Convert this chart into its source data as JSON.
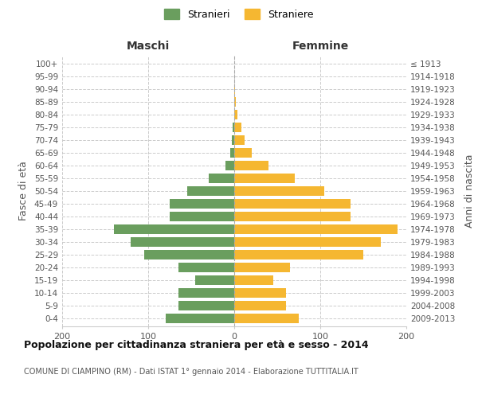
{
  "age_groups": [
    "0-4",
    "5-9",
    "10-14",
    "15-19",
    "20-24",
    "25-29",
    "30-34",
    "35-39",
    "40-44",
    "45-49",
    "50-54",
    "55-59",
    "60-64",
    "65-69",
    "70-74",
    "75-79",
    "80-84",
    "85-89",
    "90-94",
    "95-99",
    "100+"
  ],
  "birth_years": [
    "2009-2013",
    "2004-2008",
    "1999-2003",
    "1994-1998",
    "1989-1993",
    "1984-1988",
    "1979-1983",
    "1974-1978",
    "1969-1973",
    "1964-1968",
    "1959-1963",
    "1954-1958",
    "1949-1953",
    "1944-1948",
    "1939-1943",
    "1934-1938",
    "1929-1933",
    "1924-1928",
    "1919-1923",
    "1914-1918",
    "≤ 1913"
  ],
  "maschi": [
    80,
    65,
    65,
    45,
    65,
    105,
    120,
    140,
    75,
    75,
    55,
    30,
    10,
    5,
    3,
    2,
    0,
    0,
    0,
    0,
    0
  ],
  "femmine": [
    75,
    60,
    60,
    45,
    65,
    150,
    170,
    190,
    135,
    135,
    105,
    70,
    40,
    20,
    12,
    8,
    4,
    2,
    1,
    0,
    0
  ],
  "maschi_color": "#6a9e5e",
  "femmine_color": "#f5b731",
  "background_color": "#ffffff",
  "grid_color": "#cccccc",
  "title": "Popolazione per cittadinanza straniera per età e sesso - 2014",
  "subtitle": "COMUNE DI CIAMPINO (RM) - Dati ISTAT 1° gennaio 2014 - Elaborazione TUTTITALIA.IT",
  "ylabel_left": "Fasce di età",
  "ylabel_right": "Anni di nascita",
  "xlabel_left": "Maschi",
  "xlabel_right": "Femmine",
  "legend_stranieri": "Stranieri",
  "legend_straniere": "Straniere",
  "xlim": 200,
  "dpi": 100,
  "figsize": [
    6.0,
    5.0
  ]
}
